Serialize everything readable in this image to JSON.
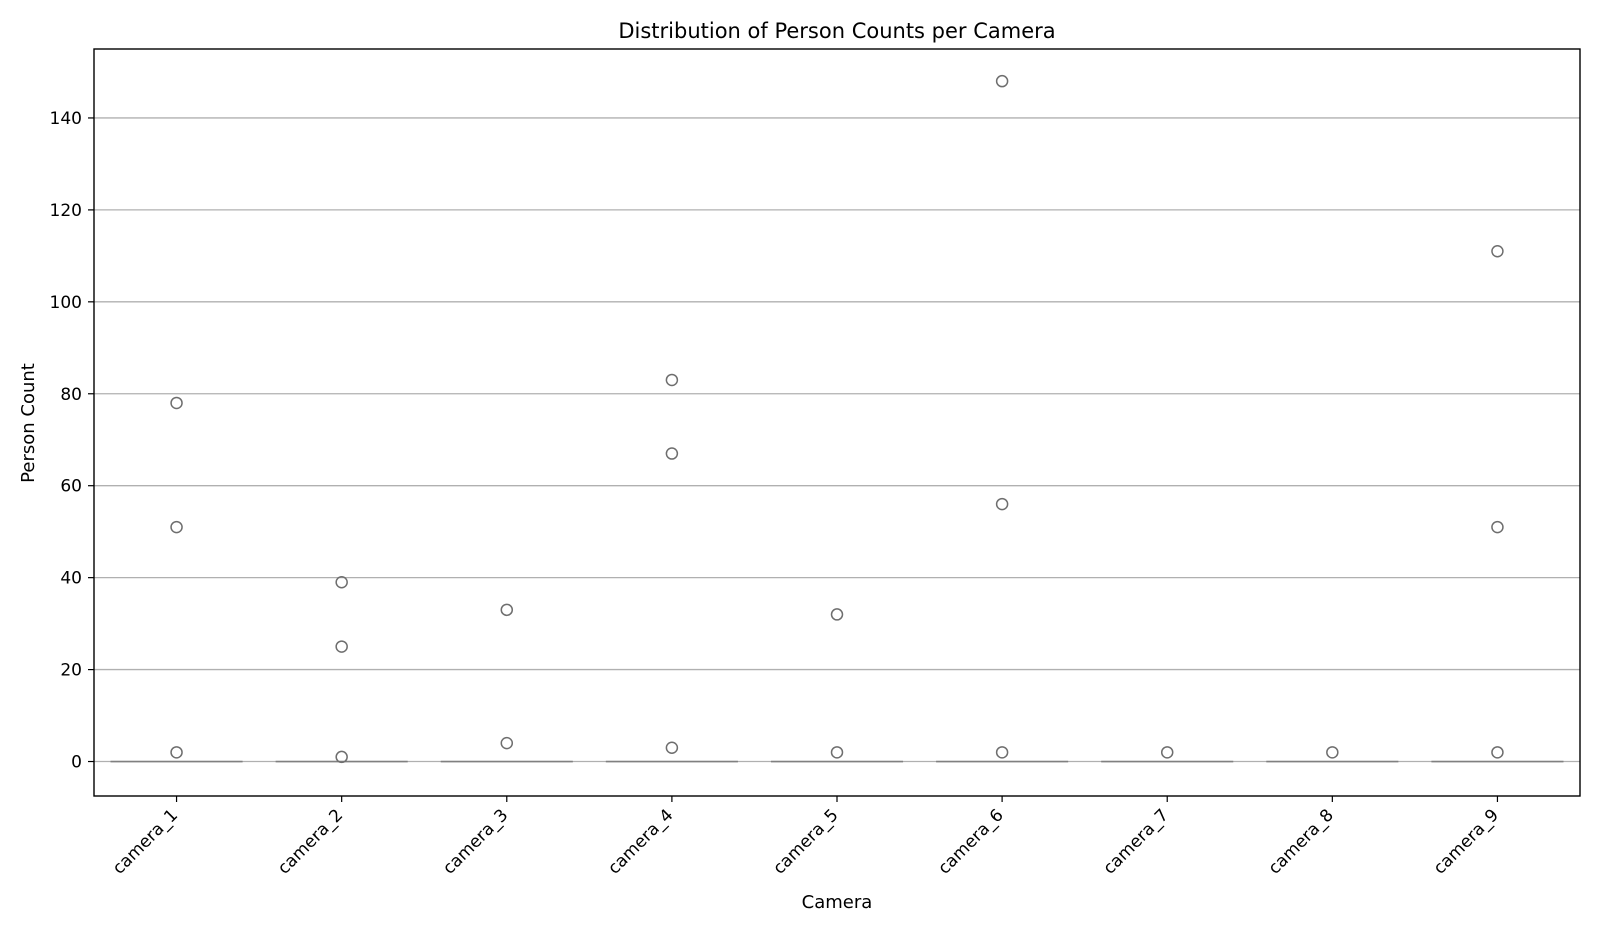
{
  "chart_data": {
    "type": "box",
    "title": "Distribution of Person Counts per Camera",
    "xlabel": "Camera",
    "ylabel": "Person Count",
    "categories": [
      "camera_1",
      "camera_2",
      "camera_3",
      "camera_4",
      "camera_5",
      "camera_6",
      "camera_7",
      "camera_8",
      "camera_9"
    ],
    "ylim": [
      -7.5,
      155
    ],
    "yticks": [
      0,
      20,
      40,
      60,
      80,
      100,
      120,
      140
    ],
    "grid": "horizontal",
    "median": [
      0,
      0,
      0,
      0,
      0,
      0,
      0,
      0,
      0
    ],
    "outliers": [
      [
        2,
        51,
        78
      ],
      [
        1,
        25,
        39
      ],
      [
        4,
        33
      ],
      [
        3,
        67,
        83
      ],
      [
        2,
        32
      ],
      [
        2,
        56,
        148
      ],
      [
        2
      ],
      [
        2
      ],
      [
        2,
        51,
        111
      ]
    ],
    "colors": {
      "grid": "#b0b0b0",
      "box_line": "#808080",
      "marker_edge": "#6e6e6e",
      "axis": "#000000"
    }
  }
}
